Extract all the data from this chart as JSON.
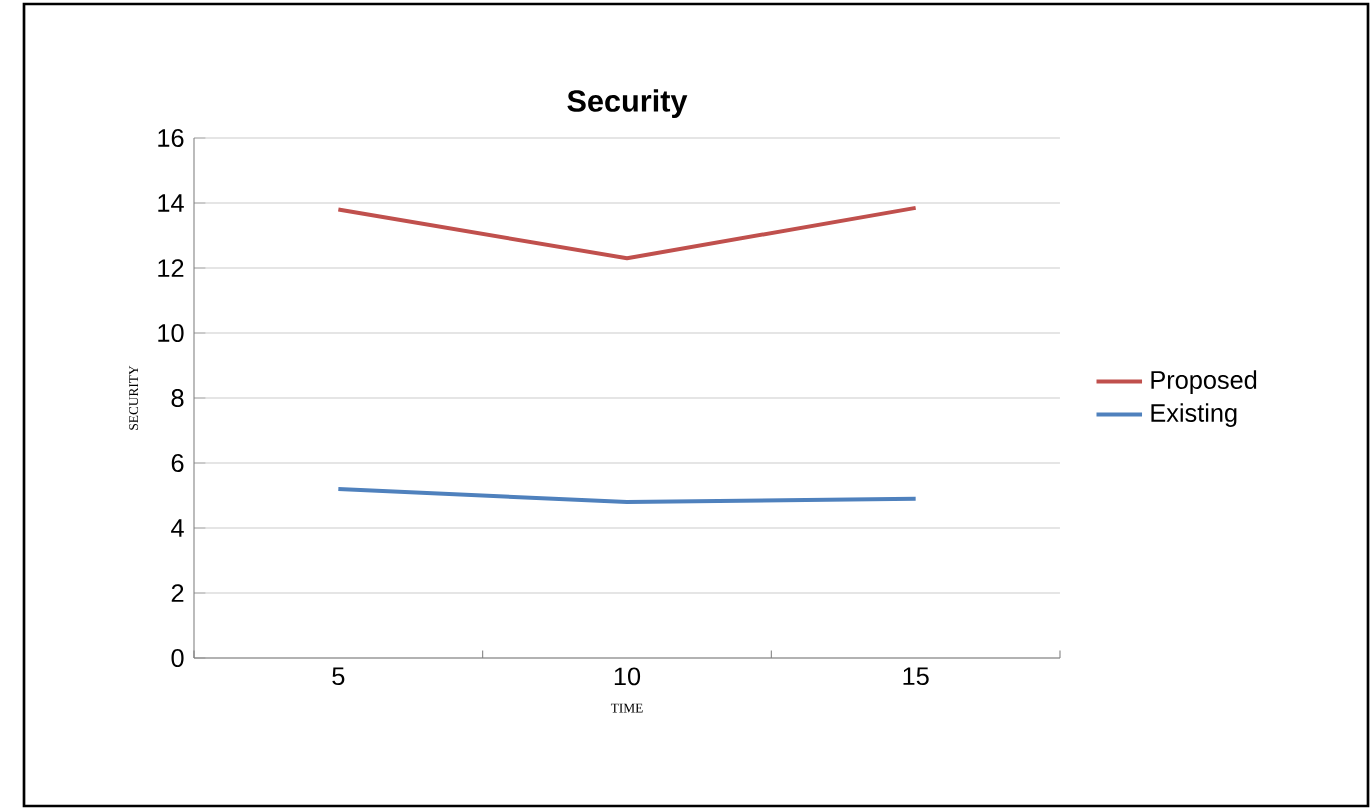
{
  "chart_data": {
    "type": "line",
    "title": "Security",
    "xlabel": "TIME",
    "ylabel": "SECURITY",
    "categories": [
      "5",
      "10",
      "15"
    ],
    "series": [
      {
        "name": "Proposed",
        "color": "#c0504d",
        "values": [
          13.8,
          12.3,
          13.85
        ]
      },
      {
        "name": "Existing",
        "color": "#4f81bd",
        "values": [
          5.2,
          4.8,
          4.9
        ]
      }
    ],
    "ylim": [
      0,
      16
    ],
    "yticks": [
      0,
      2,
      4,
      6,
      8,
      10,
      12,
      14,
      16
    ],
    "grid": "y",
    "legend": "right",
    "marker": "none",
    "line_style": "solid"
  }
}
